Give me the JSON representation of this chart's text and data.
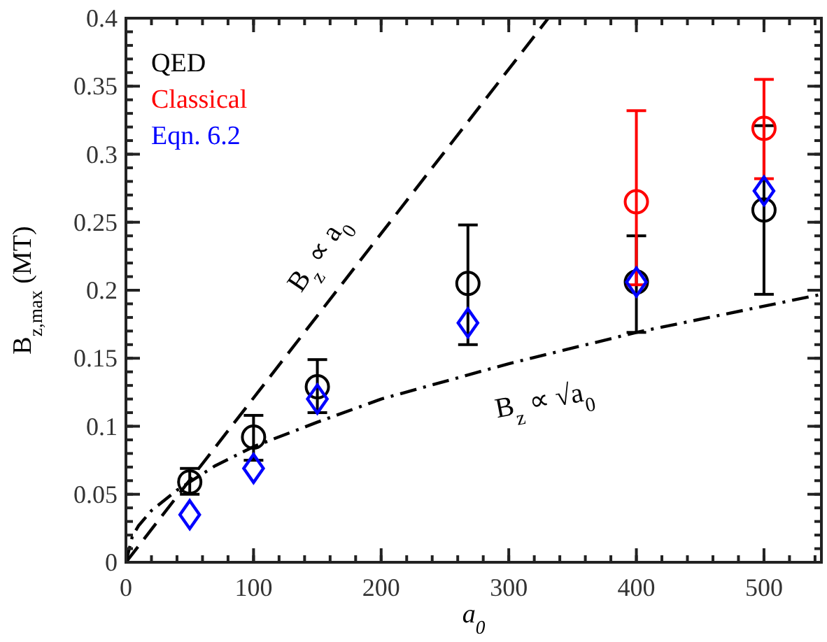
{
  "chart_data": {
    "type": "scatter",
    "xlabel": "a$_{0}$",
    "ylabel": "B$_{z,max}$ (MT)",
    "xlim": [
      0,
      545
    ],
    "xticks": [
      0,
      100,
      200,
      300,
      400,
      500
    ],
    "ylim": [
      0,
      0.4
    ],
    "yticks": [
      0,
      0.05,
      0.1,
      0.15,
      0.2,
      0.25,
      0.3,
      0.35,
      0.4
    ],
    "legend": "top left",
    "series": [
      {
        "name": "QED",
        "color": "#000000",
        "marker": "circle",
        "x": [
          50,
          100,
          150,
          268,
          400,
          500
        ],
        "values": [
          0.059,
          0.092,
          0.129,
          0.205,
          0.206,
          0.259
        ],
        "errors": [
          [
            0.05,
            0.069
          ],
          [
            0.075,
            0.108
          ],
          [
            0.11,
            0.149
          ],
          [
            0.16,
            0.248
          ],
          [
            0.169,
            0.24
          ],
          [
            0.197,
            0.321
          ]
        ]
      },
      {
        "name": "Classical",
        "color": "#ff0000",
        "marker": "circle",
        "x": [
          400,
          500
        ],
        "values": [
          0.265,
          0.319
        ],
        "errors": [
          [
            0.204,
            0.332
          ],
          [
            0.282,
            0.355
          ]
        ]
      },
      {
        "name": "Eqn. 6.2",
        "color": "#0000ff",
        "marker": "diamond",
        "x": [
          50,
          100,
          150,
          268,
          400,
          500
        ],
        "values": [
          0.035,
          0.069,
          0.12,
          0.176,
          0.206,
          0.273
        ]
      },
      {
        "type": "line",
        "color": "#000000",
        "line_style": "dashed",
        "x": [
          0,
          331
        ],
        "values": [
          0,
          0.4
        ]
      },
      {
        "type": "line",
        "color": "#000000",
        "line_style": "dashdot",
        "x": [
          0,
          5,
          10,
          20,
          40,
          70,
          100,
          150,
          200,
          300,
          400,
          545
        ],
        "values": [
          0,
          0.019,
          0.027,
          0.038,
          0.053,
          0.071,
          0.085,
          0.103,
          0.12,
          0.146,
          0.169,
          0.197
        ]
      }
    ],
    "annotations": [
      "B$_{z}$ ∝ a$_{0}$",
      "B$_{z}$ ∝ √a$_{0}$"
    ]
  }
}
